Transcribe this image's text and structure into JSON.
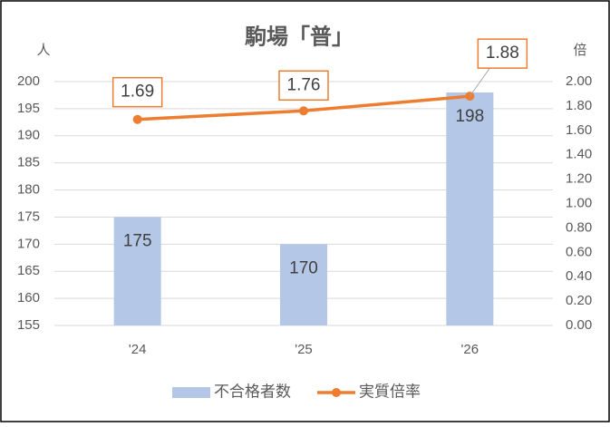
{
  "chart_data": {
    "type": "combo",
    "title": "駒場「普」",
    "y_label": "人",
    "y2_label": "倍",
    "categories": [
      "'24",
      "'25",
      "'26"
    ],
    "series": [
      {
        "name": "不合格者数",
        "type": "bar",
        "color": "#b4c7e7",
        "values": [
          175,
          170,
          198
        ]
      },
      {
        "name": "実質倍率",
        "type": "line",
        "axis": "y2",
        "color": "#ed7d31",
        "values": [
          1.69,
          1.76,
          1.88
        ]
      }
    ],
    "ylim": [
      155,
      200
    ],
    "yticks": [
      155,
      160,
      165,
      170,
      175,
      180,
      185,
      190,
      195,
      200
    ],
    "y2lim": [
      0,
      2
    ],
    "y2ticks": [
      {
        "value": 0,
        "label": "0.00"
      },
      {
        "value": 0.2,
        "label": "0.20"
      },
      {
        "value": 0.4,
        "label": "0.40"
      },
      {
        "value": 0.6,
        "label": "0.60"
      },
      {
        "value": 0.8,
        "label": "0.80"
      },
      {
        "value": 1,
        "label": "1.00"
      },
      {
        "value": 1.2,
        "label": "1.20"
      },
      {
        "value": 1.4,
        "label": "1.40"
      },
      {
        "value": 1.6,
        "label": "1.60"
      },
      {
        "value": 1.8,
        "label": "1.80"
      },
      {
        "value": 2,
        "label": "2.00"
      }
    ],
    "grid": true,
    "legend": "bottom"
  }
}
